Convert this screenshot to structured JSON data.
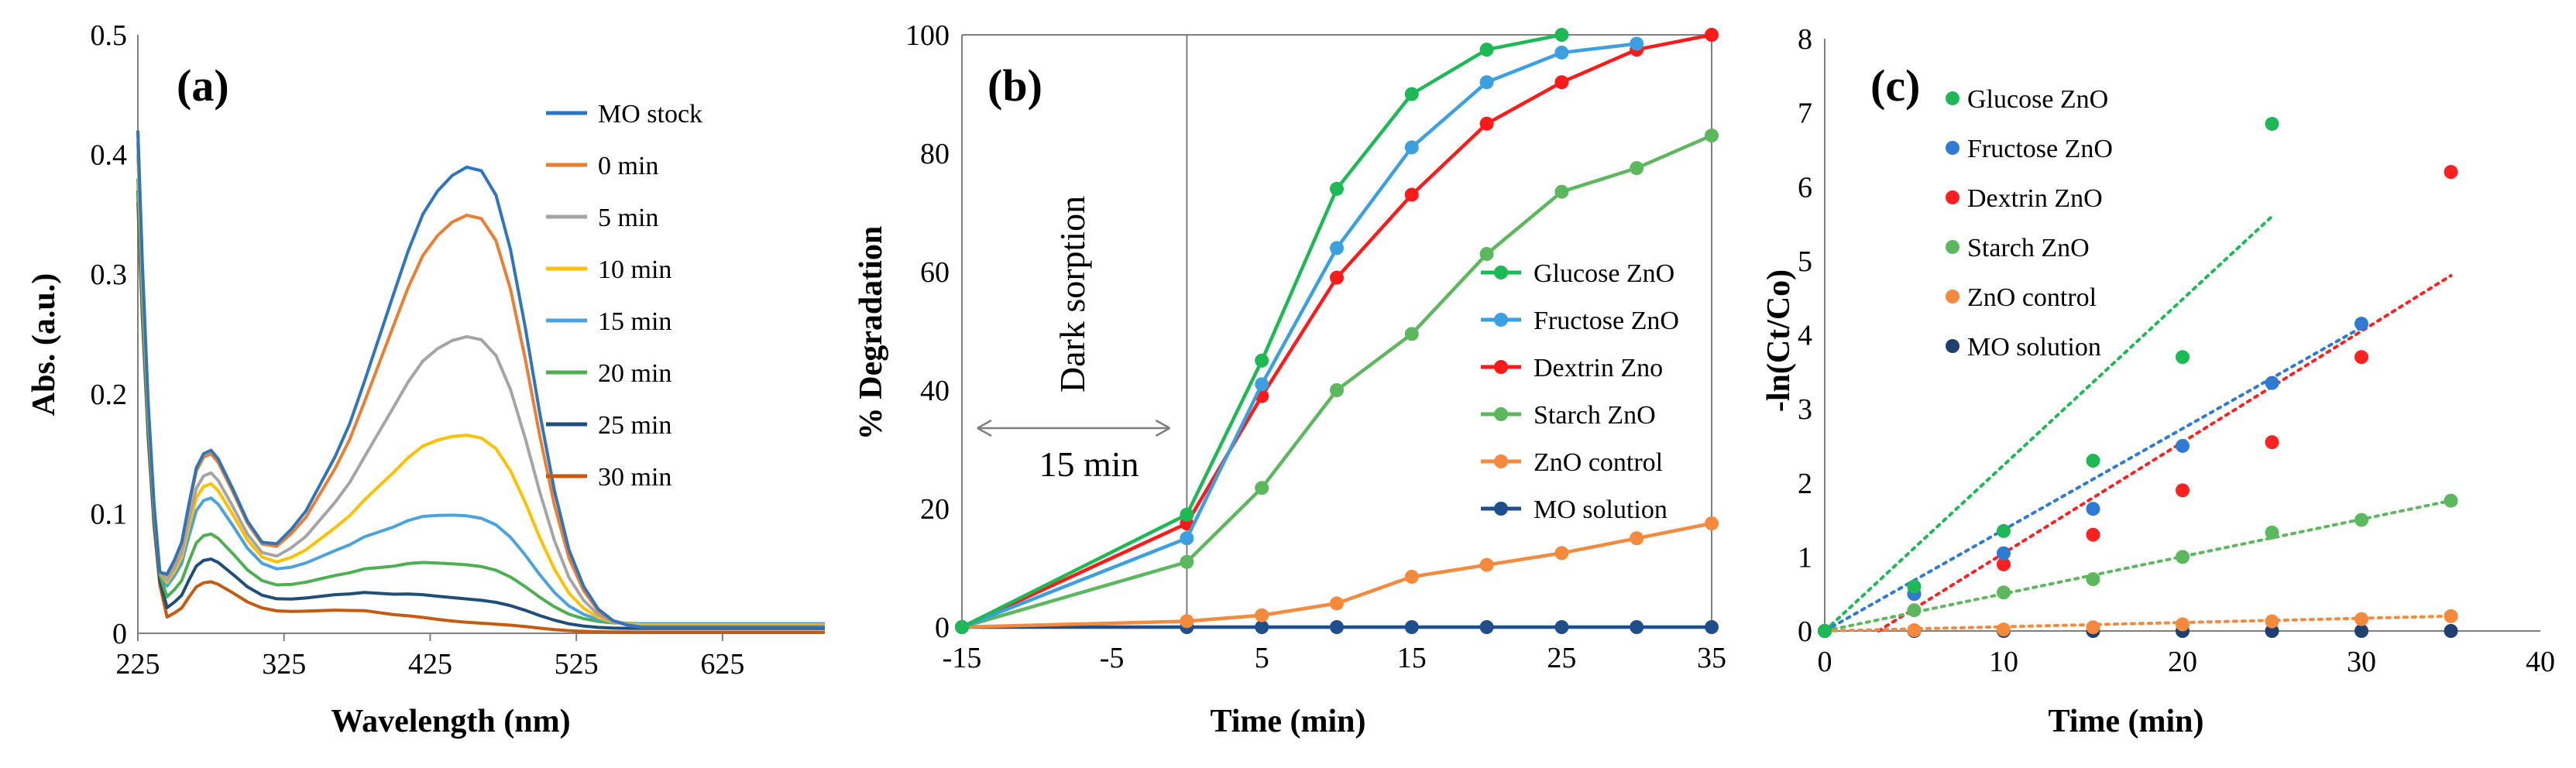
{
  "chart_data": [
    {
      "panel": "(a)",
      "type": "line",
      "xlabel": "Wavelength (nm)",
      "ylabel": "Abs. (a.u.)",
      "xlim": [
        225,
        695
      ],
      "ylim": [
        0,
        0.5
      ],
      "xticks": [
        225,
        325,
        425,
        525,
        625
      ],
      "yticks": [
        0,
        0.1,
        0.2,
        0.3,
        0.4,
        0.5
      ],
      "legend": "top-right",
      "shape_x": [
        225,
        228,
        232,
        236,
        240,
        245,
        250,
        255,
        260,
        265,
        270,
        275,
        280,
        290,
        300,
        310,
        320,
        330,
        340,
        350,
        360,
        370,
        380,
        390,
        400,
        410,
        420,
        430,
        440,
        450,
        460,
        470,
        480,
        490,
        500,
        510,
        520,
        530,
        540,
        550,
        560,
        570,
        580,
        600,
        650,
        695
      ],
      "shape_uv": [
        1.0,
        0.7,
        0.48,
        0.36,
        0.29,
        0.3,
        0.38,
        0.48,
        0.7,
        0.9,
        0.98,
        1.0,
        0.95,
        0.78,
        0.6,
        0.48,
        0.42,
        0.4,
        0.4,
        0.4,
        0.4,
        0.38,
        0.36,
        0.3,
        0.24,
        0.2,
        0.15,
        0.1,
        0.06,
        0.03,
        0.01,
        0,
        0,
        0,
        0,
        0,
        0,
        0,
        0,
        0,
        0,
        0,
        0,
        0,
        0,
        0
      ],
      "shape_vis": [
        0,
        0,
        0,
        0,
        0,
        0,
        0,
        0,
        0,
        0,
        0,
        0,
        0,
        0,
        0,
        0,
        0.02,
        0.06,
        0.1,
        0.16,
        0.22,
        0.3,
        0.4,
        0.52,
        0.64,
        0.75,
        0.85,
        0.92,
        0.97,
        1.0,
        1.0,
        0.95,
        0.83,
        0.66,
        0.47,
        0.3,
        0.17,
        0.09,
        0.04,
        0.015,
        0.005,
        0,
        0,
        0,
        0,
        0
      ],
      "series": [
        {
          "name": "MO stock",
          "color": "#2e75c0",
          "base": 0.005,
          "uv_peak": 0.148,
          "vis_peak": 0.38,
          "start": 0.42
        },
        {
          "name": "0 min",
          "color": "#ed7d31",
          "base": 0.005,
          "uv_peak": 0.145,
          "vis_peak": 0.34,
          "start": 0.42
        },
        {
          "name": "5 min",
          "color": "#a5a5a5",
          "base": 0.006,
          "uv_peak": 0.128,
          "vis_peak": 0.238,
          "start": 0.41
        },
        {
          "name": "10 min",
          "color": "#ffc000",
          "base": 0.007,
          "uv_peak": 0.118,
          "vis_peak": 0.155,
          "start": 0.4
        },
        {
          "name": "15 min",
          "color": "#4aa3df",
          "base": 0.008,
          "uv_peak": 0.105,
          "vis_peak": 0.087,
          "start": 0.4
        },
        {
          "name": "20 min",
          "color": "#4caf50",
          "base": 0.008,
          "uv_peak": 0.075,
          "vis_peak": 0.047,
          "start": 0.38
        },
        {
          "name": "25 min",
          "color": "#1f4e79",
          "base": 0.004,
          "uv_peak": 0.058,
          "vis_peak": 0.023,
          "start": 0.37
        },
        {
          "name": "30 min",
          "color": "#c55a11",
          "base": 0.001,
          "uv_peak": 0.042,
          "vis_peak": 0.007,
          "start": 0.36
        }
      ]
    },
    {
      "panel": "(b)",
      "type": "line",
      "xlabel": "Time (min)",
      "ylabel": "% Degradation",
      "xlim": [
        -15,
        35
      ],
      "ylim": [
        0,
        100
      ],
      "xticks": [
        -15,
        -5,
        5,
        15,
        25,
        35
      ],
      "yticks": [
        0,
        20,
        40,
        60,
        80,
        100
      ],
      "legend": "right",
      "annotations": {
        "dark": "Dark sorption",
        "period": "15 min"
      },
      "x": [
        -15,
        0,
        5,
        10,
        15,
        20,
        25,
        30,
        35
      ],
      "series": [
        {
          "name": "Glucose ZnO",
          "color": "#1db954",
          "x": [
            -15,
            0,
            5,
            10,
            15,
            20,
            25
          ],
          "values": [
            0,
            19,
            45,
            74,
            90,
            97.5,
            100
          ]
        },
        {
          "name": "Fructose ZnO",
          "color": "#3aa0e0",
          "x": [
            -15,
            0,
            5,
            10,
            15,
            20,
            25,
            30
          ],
          "values": [
            0,
            15,
            41,
            64,
            81,
            92,
            97,
            98.5
          ]
        },
        {
          "name": "Dextrin Zno",
          "color": "#ff1a1a",
          "x": [
            -15,
            0,
            5,
            10,
            15,
            20,
            25,
            30,
            35
          ],
          "values": [
            0,
            17.5,
            39,
            59,
            73,
            85,
            92,
            97.5,
            100
          ]
        },
        {
          "name": "Starch ZnO",
          "color": "#5cb85c",
          "x": [
            -15,
            0,
            5,
            10,
            15,
            20,
            25,
            30,
            35
          ],
          "values": [
            0,
            11,
            23.5,
            40,
            49.5,
            63,
            73.5,
            77.5,
            83
          ]
        },
        {
          "name": "ZnO control",
          "color": "#f5893c",
          "x": [
            -15,
            0,
            5,
            10,
            15,
            20,
            25,
            30,
            35
          ],
          "values": [
            0,
            1,
            2,
            4,
            8.5,
            10.5,
            12.5,
            15,
            17.5
          ]
        },
        {
          "name": "MO solution",
          "color": "#1f4e8c",
          "x": [
            -15,
            0,
            5,
            10,
            15,
            20,
            25,
            30,
            35
          ],
          "values": [
            0,
            0,
            0,
            0,
            0,
            0,
            0,
            0,
            0
          ]
        }
      ]
    },
    {
      "panel": "(c)",
      "type": "scatter",
      "xlabel": "Time (min)",
      "ylabel": "-ln(Ct/Co)",
      "xlim": [
        0,
        40
      ],
      "ylim": [
        0,
        8
      ],
      "xticks": [
        0,
        10,
        20,
        30,
        40
      ],
      "yticks": [
        0,
        1,
        2,
        3,
        4,
        5,
        6,
        7,
        8
      ],
      "legend": "top-left",
      "series": [
        {
          "name": "Glucose ZnO",
          "color": "#1db954",
          "x": [
            0,
            5,
            10,
            15,
            20,
            25
          ],
          "values": [
            0,
            0.6,
            1.35,
            2.3,
            3.7,
            6.85
          ],
          "trend": [
            [
              0,
              0
            ],
            [
              25,
              5.6
            ]
          ]
        },
        {
          "name": "Fructose ZnO",
          "color": "#2e7bd6",
          "x": [
            0,
            5,
            10,
            15,
            20,
            25,
            30
          ],
          "values": [
            0,
            0.5,
            1.05,
            1.65,
            2.5,
            3.35,
            4.15
          ],
          "trend": [
            [
              0,
              0
            ],
            [
              30,
              4.1
            ]
          ]
        },
        {
          "name": "Dextrin ZnO",
          "color": "#ff2020",
          "x": [
            0,
            5,
            10,
            15,
            20,
            25,
            30,
            35
          ],
          "values": [
            0,
            0.5,
            0.9,
            1.3,
            1.9,
            2.55,
            3.7,
            6.2
          ],
          "trend": [
            [
              3,
              0
            ],
            [
              35,
              4.8
            ]
          ]
        },
        {
          "name": "Starch ZnO",
          "color": "#5cb85c",
          "x": [
            0,
            5,
            10,
            15,
            20,
            25,
            30,
            35
          ],
          "values": [
            0,
            0.28,
            0.52,
            0.7,
            1.0,
            1.33,
            1.5,
            1.76
          ],
          "trend": [
            [
              0,
              0
            ],
            [
              35,
              1.76
            ]
          ]
        },
        {
          "name": "ZnO control",
          "color": "#f5893c",
          "x": [
            0,
            5,
            10,
            15,
            20,
            25,
            30,
            35
          ],
          "values": [
            0,
            0.01,
            0.02,
            0.05,
            0.09,
            0.13,
            0.16,
            0.2
          ],
          "trend": [
            [
              0,
              0
            ],
            [
              35,
              0.2
            ]
          ]
        },
        {
          "name": "MO solution",
          "color": "#1f3f73",
          "x": [
            0,
            5,
            10,
            15,
            20,
            25,
            30,
            35
          ],
          "values": [
            0,
            0,
            0,
            0,
            0,
            0,
            0,
            0
          ],
          "trend": null
        }
      ]
    }
  ]
}
